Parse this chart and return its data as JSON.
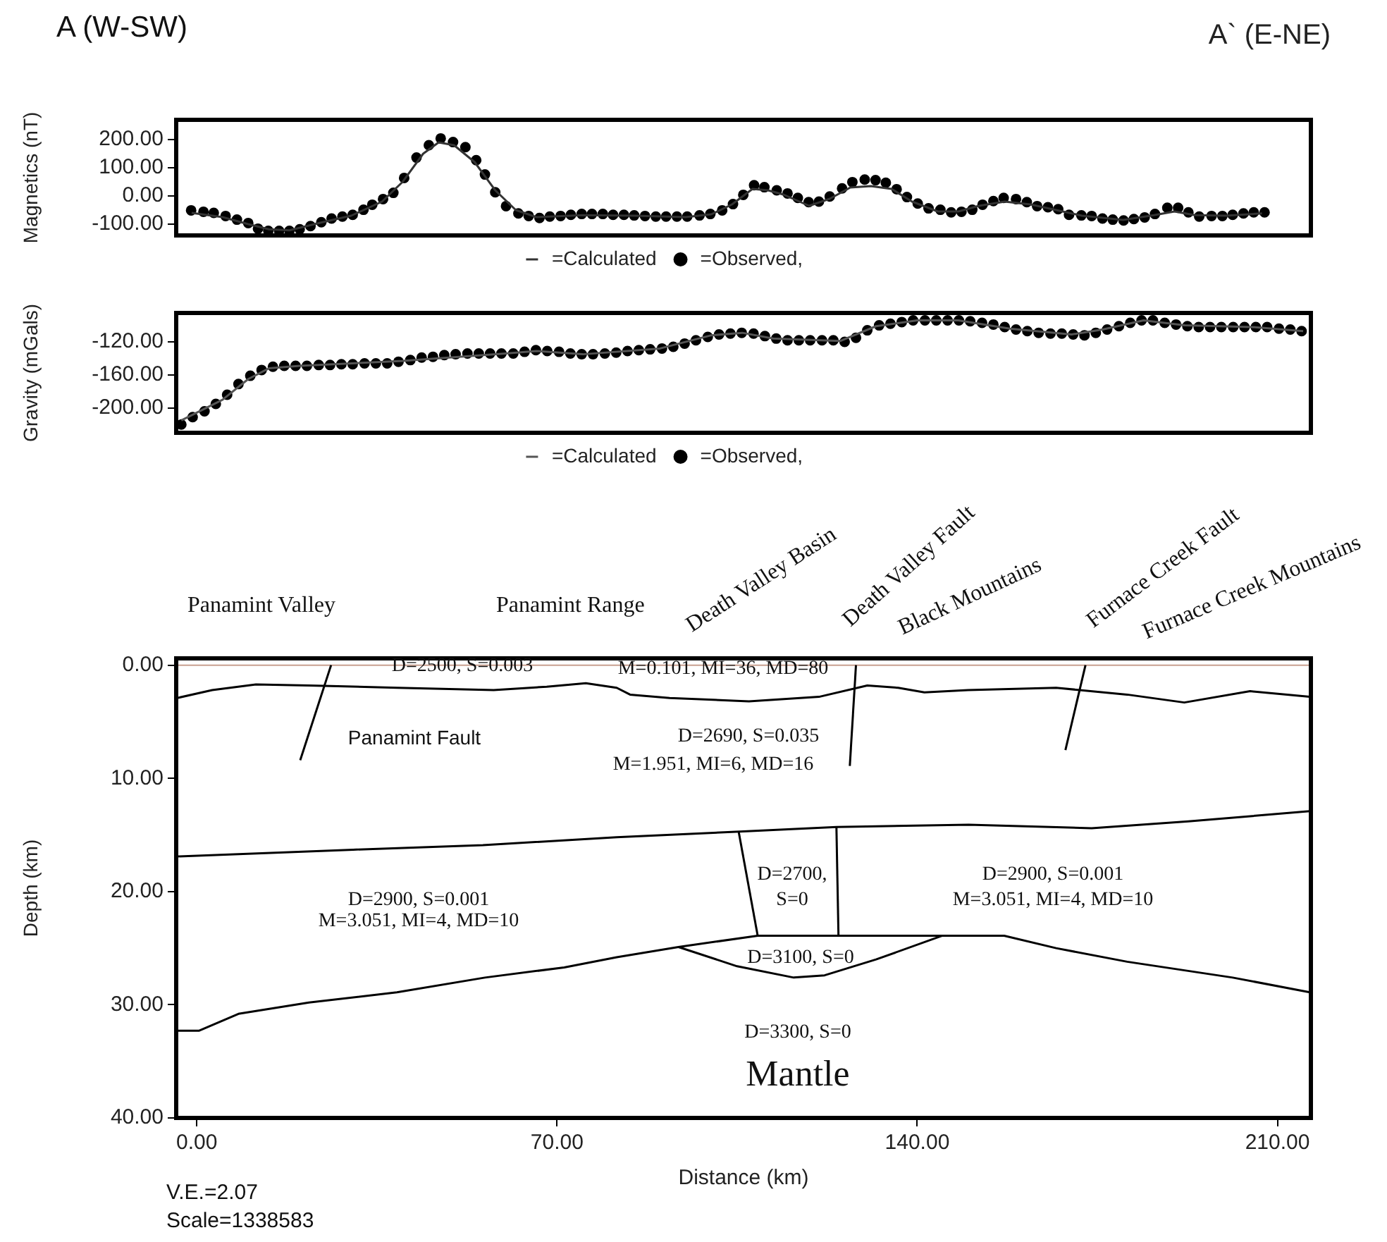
{
  "chart_data": [
    {
      "type": "line",
      "title": "A (W-SW)",
      "ylabel": "Magnetics (nT)",
      "annotations": [
        "A` (E-NE)"
      ],
      "xlim": [
        -4,
        216.5
      ],
      "ylim": [
        -140,
        270
      ],
      "yticks": [
        {
          "value": 200,
          "label": "200.00"
        },
        {
          "value": 100,
          "label": "100.00"
        },
        {
          "value": 0,
          "label": "0.00"
        },
        {
          "value": -100,
          "label": "-100.00"
        }
      ],
      "tick_labels": "y",
      "grid": false,
      "legend": "bottom",
      "series": [
        {
          "name": "=Observed,",
          "type": "scatter",
          "marker": "circle",
          "color": "#000000",
          "x": [
            -1.1,
            1.3,
            3.3,
            5.6,
            7.8,
            10,
            11.9,
            13.9,
            16,
            18,
            20,
            22.1,
            24.2,
            26.2,
            28.3,
            30.3,
            32.4,
            34.1,
            36.2,
            38.2,
            40.3,
            42.7,
            45.1,
            47.4,
            49.8,
            52.2,
            54.3,
            56,
            58,
            60.1,
            62.5,
            64.5,
            66.6,
            68.6,
            70.7,
            72.7,
            74.8,
            76.8,
            78.9,
            80.9,
            83,
            85,
            87.1,
            89.2,
            91.2,
            93.3,
            95.3,
            97.7,
            99.8,
            102.1,
            104.2,
            106.2,
            108.3,
            110.3,
            112.7,
            114.8,
            116.8,
            118.9,
            120.9,
            123,
            125.4,
            127.4,
            129.8,
            131.9,
            133.9,
            136,
            138,
            140.1,
            142.2,
            144.5,
            146.6,
            148.6,
            150.7,
            152.7,
            154.8,
            156.8,
            159.2,
            161.3,
            163.3,
            165.4,
            167.4,
            169.5,
            171.9,
            173.9,
            176,
            178,
            180.1,
            182.1,
            184.2,
            186.2,
            188.6,
            190.7,
            192.7,
            194.8,
            197.2,
            199.3,
            201.3,
            203.4,
            205.4,
            207.5
          ],
          "values": [
            -51,
            -56,
            -60,
            -71,
            -84,
            -96,
            -116,
            -124,
            -124,
            -124,
            -118,
            -107,
            -93,
            -80,
            -73,
            -67,
            -49,
            -31,
            -11,
            11,
            64,
            136,
            180,
            204,
            191,
            173,
            127,
            76,
            13,
            -36,
            -62,
            -71,
            -78,
            -73,
            -71,
            -67,
            -64,
            -64,
            -64,
            -67,
            -67,
            -69,
            -71,
            -73,
            -73,
            -73,
            -73,
            -69,
            -64,
            -51,
            -29,
            4,
            38,
            31,
            20,
            9,
            -7,
            -22,
            -20,
            -2,
            27,
            49,
            58,
            56,
            47,
            24,
            -4,
            -27,
            -44,
            -49,
            -58,
            -56,
            -49,
            -31,
            -18,
            -7,
            -11,
            -22,
            -36,
            -40,
            -47,
            -67,
            -69,
            -71,
            -80,
            -84,
            -87,
            -82,
            -76,
            -64,
            -42,
            -42,
            -58,
            -73,
            -71,
            -71,
            -67,
            -62,
            -58,
            -58
          ]
        },
        {
          "name": "=Calculated",
          "type": "line",
          "marker": "none",
          "color": "#333333",
          "x": [
            -1,
            5,
            10,
            14,
            18,
            24,
            30,
            36,
            40,
            44,
            47,
            50,
            54,
            58,
            62,
            66,
            75,
            85,
            95,
            100,
            104,
            108,
            111,
            114,
            119,
            123,
            127,
            131,
            135,
            139,
            144,
            148,
            152,
            157,
            162,
            167,
            172,
            180,
            186,
            190,
            194,
            200,
            207
          ],
          "values": [
            -60,
            -75,
            -100,
            -118,
            -122,
            -95,
            -70,
            -20,
            50,
            150,
            190,
            180,
            120,
            20,
            -50,
            -75,
            -68,
            -70,
            -75,
            -65,
            -30,
            25,
            20,
            5,
            -35,
            -10,
            30,
            35,
            25,
            -20,
            -55,
            -55,
            -35,
            -20,
            -30,
            -50,
            -70,
            -85,
            -68,
            -55,
            -68,
            -70,
            -62
          ]
        }
      ]
    },
    {
      "type": "line",
      "ylabel": "Gravity (mGals)",
      "xlim": [
        -4,
        216.5
      ],
      "ylim": [
        -230,
        -85
      ],
      "yticks": [
        {
          "value": -120,
          "label": "-120.00"
        },
        {
          "value": -160,
          "label": "-160.00"
        },
        {
          "value": -200,
          "label": "-200.00"
        }
      ],
      "tick_labels": "y",
      "grid": false,
      "legend": "bottom",
      "series": [
        {
          "name": "=Observed,",
          "type": "scatter",
          "marker": "circle",
          "color": "#000000",
          "x": [
            -3,
            -0.8,
            1.5,
            3.7,
            5.9,
            8.1,
            10.4,
            12.6,
            14.8,
            17,
            19.2,
            21.4,
            23.7,
            25.9,
            28.1,
            30.3,
            32.6,
            34.8,
            37,
            39.2,
            41.5,
            43.7,
            45.9,
            48.1,
            50.3,
            52.6,
            54.8,
            57,
            59.2,
            61.5,
            63.7,
            65.9,
            68.1,
            70.4,
            72.6,
            74.8,
            77,
            79.3,
            81.5,
            83.7,
            85.9,
            88.1,
            90.4,
            92.6,
            94.8,
            97,
            99.3,
            101.5,
            103.7,
            105.9,
            108.2,
            110.4,
            112.6,
            114.8,
            117,
            119.2,
            121.5,
            123.7,
            125.9,
            128.1,
            130.3,
            132.6,
            134.8,
            137,
            139.2,
            141.5,
            143.7,
            145.9,
            148.1,
            150.3,
            152.6,
            154.8,
            157,
            159.2,
            161.4,
            163.6,
            165.9,
            168.1,
            170.3,
            172.5,
            174.7,
            176.9,
            179.2,
            181.4,
            183.6,
            185.8,
            188.1,
            190.3,
            192.5,
            194.7,
            196.9,
            199.1,
            201.4,
            203.6,
            205.8,
            208,
            210.3,
            212.5,
            214.7
          ],
          "values": [
            -220,
            -211,
            -204,
            -195,
            -184,
            -171,
            -161,
            -154,
            -150,
            -149,
            -149,
            -149,
            -148,
            -148,
            -147,
            -147,
            -146,
            -146,
            -146,
            -144,
            -142,
            -139,
            -138,
            -136,
            -135,
            -134,
            -134,
            -134,
            -134,
            -134,
            -132,
            -130,
            -131,
            -132,
            -134,
            -135,
            -135,
            -134,
            -133,
            -131,
            -130,
            -129,
            -128,
            -126,
            -122,
            -118,
            -114,
            -111,
            -110,
            -109,
            -110,
            -113,
            -116,
            -118,
            -118,
            -118,
            -118,
            -118,
            -120,
            -115,
            -106,
            -100,
            -98,
            -96,
            -94,
            -94,
            -94,
            -94,
            -94,
            -95,
            -97,
            -99,
            -102,
            -105,
            -107,
            -109,
            -110,
            -110,
            -111,
            -112,
            -109,
            -105,
            -101,
            -97,
            -94,
            -94,
            -97,
            -99,
            -101,
            -102,
            -102,
            -102,
            -102,
            -102,
            -102,
            -102,
            -104,
            -105,
            -107
          ]
        },
        {
          "name": "=Calculated",
          "type": "line",
          "marker": "none",
          "color": "#555555",
          "x": [
            -3,
            5,
            10,
            14,
            20,
            40,
            60,
            66,
            75,
            90,
            100,
            106,
            112,
            125,
            132,
            140,
            148,
            158,
            170,
            176,
            184,
            192,
            205,
            215
          ],
          "values": [
            -215,
            -190,
            -165,
            -152,
            -149,
            -143,
            -134,
            -131,
            -135,
            -128,
            -112,
            -109,
            -116,
            -119,
            -101,
            -94,
            -94,
            -104,
            -111,
            -105,
            -94,
            -100,
            -102,
            -107
          ]
        }
      ]
    },
    {
      "type": "line",
      "xlabel": "Distance (km)",
      "ylabel": "Depth (km)",
      "xlim": [
        -4,
        216.5
      ],
      "ylim": [
        40,
        -0.6
      ],
      "xticks": [
        {
          "value": 0,
          "label": "0.00"
        },
        {
          "value": 70,
          "label": "70.00"
        },
        {
          "value": 140,
          "label": "140.00"
        },
        {
          "value": 210,
          "label": "210.00"
        }
      ],
      "yticks": [
        {
          "value": 0,
          "label": "0.00"
        },
        {
          "value": 10,
          "label": "10.00"
        },
        {
          "value": 20,
          "label": "20.00"
        },
        {
          "value": 30,
          "label": "30.00"
        },
        {
          "value": 40,
          "label": "40.00"
        }
      ],
      "grid": false,
      "legend": false,
      "line_style": "solid",
      "ref_lines": [
        {
          "axis": "y",
          "value": 0,
          "color": "#c8a090"
        }
      ],
      "annotations": [
        "V.E.=2.07",
        "Scale=1338583",
        "Panamint Valley",
        "Panamint Range",
        "Death Valley Basin",
        "Death Valley Fault",
        "Black Mountains",
        "Furnace Creek Fault",
        "Furnace Creek Mountains",
        "D=2500, S=0.003",
        "M=0.101, MI=36, MD=80",
        "Panamint Fault",
        "D=2690, S=0.035",
        "M=1.951, MI=6, MD=16",
        "D=2900, S=0.001",
        "M=3.051, MI=4, MD=10",
        "D=2700,",
        "S=0",
        "D=2900, S=0.001",
        "M=3.051, MI=4, MD=10",
        "D=3100, S=0",
        "D=3300, S=0",
        "Mantle"
      ],
      "series": [
        {
          "color": "#000000",
          "x": [
            -3.8,
            3,
            11.5,
            21.8,
            39,
            57.7,
            68,
            75.6,
            81.6,
            84.2,
            91.9,
            107.3,
            120.9,
            130.3,
            136.3,
            141.4,
            149.9,
            167,
            180.8,
            191.9,
            204.7,
            216.3
          ],
          "values": [
            2.9,
            2.2,
            1.7,
            1.8,
            2.0,
            2.2,
            1.9,
            1.6,
            2.0,
            2.6,
            2.9,
            3.2,
            2.8,
            1.8,
            2.0,
            2.4,
            2.2,
            2.0,
            2.6,
            3.3,
            2.3,
            2.8
          ]
        },
        {
          "color": "#000000",
          "x": [
            -3.8,
            30.4,
            55.6,
            81.6,
            105.5,
            124.3,
            150,
            173.9,
            192.7,
            216.3
          ],
          "values": [
            16.9,
            16.3,
            15.9,
            15.2,
            14.7,
            14.3,
            14.1,
            14.4,
            13.8,
            12.9
          ]
        },
        {
          "color": "#000000",
          "x": [
            -3.8,
            0.4,
            8.1,
            21.8,
            38.9,
            56,
            71.4,
            81.6,
            93.6,
            109,
            144.9,
            156.9,
            167,
            180.8,
            201.3,
            216.3
          ],
          "values": [
            32.3,
            32.3,
            30.8,
            29.8,
            28.9,
            27.6,
            26.7,
            25.8,
            24.9,
            23.9,
            23.9,
            23.9,
            25,
            26.2,
            27.6,
            28.9
          ]
        },
        {
          "color": "#000000",
          "x": [
            93.6,
            105,
            116,
            122,
            132,
            144.9
          ],
          "values": [
            24.9,
            26.6,
            27.6,
            27.4,
            26,
            23.9
          ]
        },
        {
          "color": "#000000",
          "x": [
            105.3,
            109
          ],
          "values": [
            14.7,
            23.9
          ]
        },
        {
          "color": "#000000",
          "x": [
            124.3,
            124.7
          ],
          "values": [
            14.3,
            23.9
          ]
        },
        {
          "color": "#000000",
          "x": [
            26.1,
            20.1
          ],
          "values": [
            0,
            8.4
          ]
        },
        {
          "color": "#000000",
          "x": [
            128.1,
            126.9
          ],
          "values": [
            0,
            8.9
          ]
        },
        {
          "color": "#000000",
          "x": [
            172.7,
            168.8
          ],
          "values": [
            0,
            7.5
          ]
        }
      ]
    }
  ]
}
